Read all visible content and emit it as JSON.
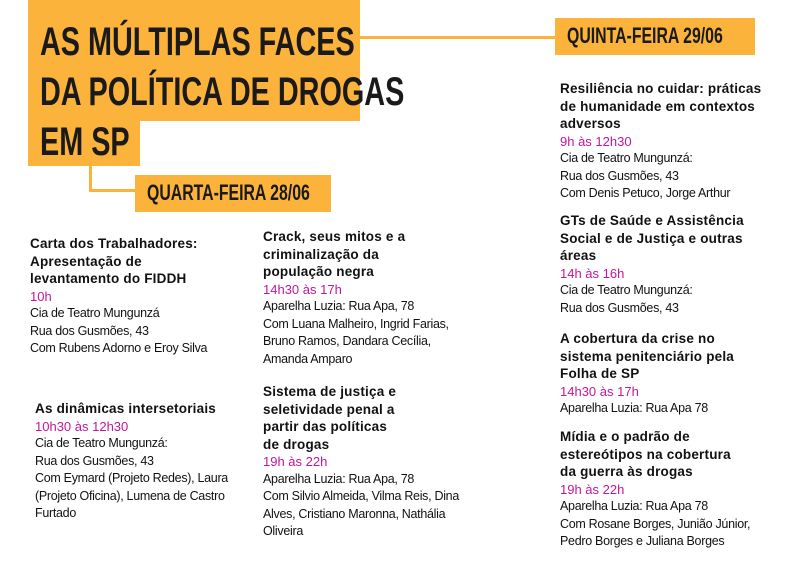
{
  "header": {
    "title_lines": [
      "AS MÚLTIPLAS FACES",
      "DA POLÍTICA DE DROGAS",
      "EM SP"
    ]
  },
  "days": [
    {
      "label": "QUARTA-FEIRA 28/06",
      "events": [
        {
          "title": [
            "Carta dos Trabalhadores:",
            "Apresentação de",
            "levantamento do FIDDH"
          ],
          "time": "10h",
          "details": [
            "Cia de Teatro Mungunzá",
            "Rua dos Gusmões, 43",
            "Com Rubens Adorno e Eroy Silva"
          ]
        },
        {
          "title": [
            "As dinâmicas intersetoriais"
          ],
          "time": "10h30 às 12h30",
          "details": [
            "Cia de Teatro Mungunzá:",
            "Rua dos Gusmões, 43",
            "Com Eymard (Projeto Redes), Laura",
            "(Projeto Oficina), Lumena de Castro",
            "Furtado"
          ]
        },
        {
          "title": [
            "Crack, seus mitos e a",
            "criminalização da",
            "população negra"
          ],
          "time": "14h30 às 17h",
          "details": [
            "Aparelha Luzia: Rua Apa, 78",
            "Com Luana Malheiro, Ingrid Farias,",
            "Bruno Ramos, Dandara Cecília,",
            "Amanda Amparo"
          ]
        },
        {
          "title": [
            "Sistema de justiça e",
            "seletividade penal a",
            "partir das políticas",
            "de drogas"
          ],
          "time": "19h às 22h",
          "details": [
            "Aparelha Luzia: Rua Apa, 78",
            "Com Silvio Almeida, Vilma Reis, Dina",
            "Alves, Cristiano Maronna, Nathália",
            "Oliveira"
          ]
        }
      ]
    },
    {
      "label": "QUINTA-FEIRA 29/06",
      "events": [
        {
          "title": [
            "Resiliência no cuidar: práticas",
            "de humanidade em contextos",
            "adversos"
          ],
          "time": "9h às 12h30",
          "details": [
            "Cia de Teatro Mungunzá:",
            "Rua dos Gusmões, 43",
            "Com Denis Petuco, Jorge Arthur"
          ]
        },
        {
          "title": [
            "GTs de Saúde e Assistência",
            "Social e de Justiça e outras",
            "áreas"
          ],
          "time": "14h às 16h",
          "details": [
            "Cia de Teatro Mungunzá:",
            "Rua dos Gusmões, 43"
          ]
        },
        {
          "title": [
            "A cobertura da crise no",
            "sistema penitenciário pela",
            "Folha de SP"
          ],
          "time": "14h30 às 17h",
          "details": [
            "Aparelha Luzia: Rua Apa 78"
          ]
        },
        {
          "title": [
            "Mídia e o padrão de",
            "estereótipos na cobertura",
            "da guerra às drogas"
          ],
          "time": "19h às 22h",
          "details": [
            "Aparelha Luzia: Rua Apa 78",
            "Com Rosane Borges, Junião Júnior,",
            "Pedro Borges e Juliana Borges"
          ]
        }
      ]
    }
  ]
}
